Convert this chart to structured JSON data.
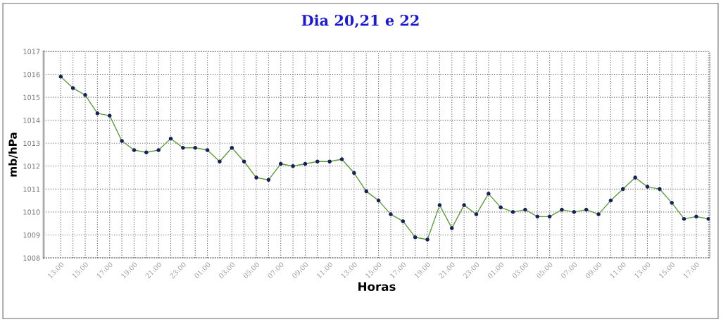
{
  "chart_data": {
    "type": "line",
    "title": "Dia 20,21 e 22",
    "xlabel": "Horas",
    "ylabel": "mb/hPa",
    "categories": [
      "13:00",
      null,
      "15:00",
      null,
      "17:00",
      null,
      "19:00",
      null,
      "21:00",
      null,
      "23:00",
      null,
      "01:00",
      null,
      "03:00",
      null,
      "05:00",
      null,
      "07:00",
      null,
      "09:00",
      null,
      "11:00",
      null,
      "13:00",
      null,
      "15:00",
      null,
      "17:00",
      null,
      "19:00",
      null,
      "21:00",
      null,
      "23:00",
      null,
      "01:00",
      null,
      "03:00",
      null,
      "05:00",
      null,
      "07:00",
      null,
      "09:00",
      null,
      "11:00",
      null,
      "13:00",
      null,
      "15:00",
      null,
      "17:00",
      null
    ],
    "series": [
      {
        "color": "#5a9e3a",
        "values": [
          1015.9,
          1015.4,
          1015.1,
          1014.3,
          1014.2,
          1013.1,
          1012.7,
          1012.6,
          1012.7,
          1013.2,
          1012.8,
          1012.8,
          1012.7,
          1012.2,
          1012.8,
          1012.2,
          1011.5,
          1011.4,
          1012.1,
          1012.0,
          1012.1,
          1012.2,
          1012.2,
          1012.3,
          1011.7,
          1010.9,
          1010.5,
          1009.9,
          1009.6,
          1008.9,
          1008.8,
          1010.3,
          1009.3,
          1010.3,
          1009.9,
          1010.8,
          1010.2,
          1010.0,
          1010.1,
          1009.8,
          1009.8,
          1010.1,
          1010.0,
          1010.1,
          1009.9,
          1010.5,
          1011.0,
          1011.5,
          1011.1,
          1011.0,
          1010.4,
          1009.7,
          1009.8,
          1009.7
        ]
      }
    ],
    "ylim": [
      1008,
      1017
    ],
    "yticks": [
      1008,
      1009,
      1010,
      1011,
      1012,
      1013,
      1014,
      1015,
      1016,
      1017
    ],
    "grid": true,
    "marker": "circle",
    "line_style": "solid",
    "legend": false
  }
}
